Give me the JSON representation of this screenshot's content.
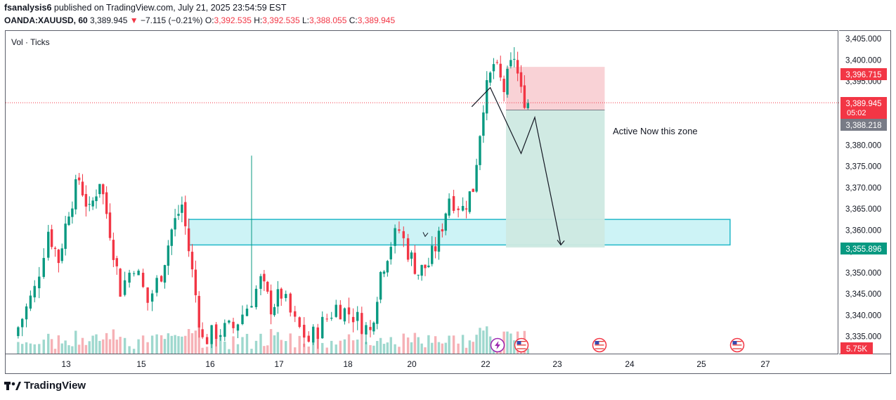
{
  "header": {
    "author": "fsanalysis6",
    "published_text": "published on TradingView.com, July 21, 2025 23:54:59 EST",
    "symbol": "OANDA:XAUUSD, 60",
    "last": "3,389.945",
    "change_arrow": "▼",
    "change": "−7.115 (−0.21%)",
    "o_label": "O:",
    "o_value": "3,392.535",
    "h_label": "H:",
    "h_value": "3,392.535",
    "l_label": "L:",
    "l_value": "3,388.055",
    "c_label": "C:",
    "c_value": "3,389.945"
  },
  "volume_label": "Vol · Ticks",
  "annotation_text": "Active Now this zone",
  "price_tags": {
    "stop": "3,396.715",
    "current": "3,389.945",
    "countdown": "05:02",
    "entry": "3,388.218",
    "target": "3,355.896",
    "volume": "5.75K"
  },
  "footer_brand": "TradingView",
  "colors": {
    "up": "#089981",
    "down": "#f23645",
    "zone_fill": "#c4f1f5",
    "zone_border": "#22b8c8",
    "stop_fill": "#f9d2d6",
    "target_fill": "#cde9e2",
    "tag_red": "#f23645",
    "tag_gray": "#787b86",
    "tag_green": "#089981"
  },
  "events": [
    {
      "icon": "lightning-icon"
    },
    {
      "icon": "us-flag-icon"
    },
    {
      "icon": "us-flag-icon"
    },
    {
      "icon": "us-flag-icon"
    }
  ],
  "chart_data": {
    "type": "candlestick",
    "symbol": "XAUUSD",
    "interval": "60",
    "y_ticks": [
      "3,405.000",
      "3,400.000",
      "3,395.000",
      "3,390.000",
      "3,385.000",
      "3,380.000",
      "3,375.000",
      "3,370.000",
      "3,365.000",
      "3,360.000",
      "3,355.000",
      "3,350.000",
      "3,345.000",
      "3,340.000",
      "3,335.000"
    ],
    "ylim": [
      3333.5,
      3407.5
    ],
    "x_ticks": [
      "13",
      "15",
      "16",
      "17",
      "18",
      "20",
      "22",
      "23",
      "24",
      "25",
      "27"
    ],
    "x_tick_times": [
      1,
      2,
      3,
      4,
      5,
      6,
      7,
      8,
      9,
      10,
      11
    ],
    "xlim": [
      0.0,
      11.2
    ],
    "series_anchors": [
      [
        0.0,
        3335
      ],
      [
        0.3,
        3346
      ],
      [
        0.5,
        3360
      ],
      [
        0.65,
        3353
      ],
      [
        0.8,
        3365
      ],
      [
        0.95,
        3372
      ],
      [
        1.1,
        3364
      ],
      [
        1.25,
        3372
      ],
      [
        1.4,
        3360
      ],
      [
        1.55,
        3346
      ],
      [
        1.75,
        3352
      ],
      [
        1.95,
        3343
      ],
      [
        2.15,
        3350
      ],
      [
        2.3,
        3360
      ],
      [
        2.45,
        3366
      ],
      [
        2.6,
        3350
      ],
      [
        2.75,
        3334
      ],
      [
        2.95,
        3336
      ],
      [
        3.2,
        3337
      ],
      [
        3.4,
        3342
      ],
      [
        3.6,
        3348
      ],
      [
        3.75,
        3342
      ],
      [
        3.9,
        3345
      ],
      [
        4.1,
        3338
      ],
      [
        4.3,
        3334
      ],
      [
        4.5,
        3338
      ],
      [
        4.7,
        3342
      ],
      [
        4.95,
        3340
      ],
      [
        5.2,
        3336
      ],
      [
        5.35,
        3350
      ],
      [
        5.5,
        3357
      ],
      [
        5.62,
        3360
      ],
      [
        5.75,
        3355
      ],
      [
        5.9,
        3350
      ],
      [
        6.05,
        3352
      ],
      [
        6.2,
        3358
      ],
      [
        6.35,
        3368
      ],
      [
        6.55,
        3365
      ],
      [
        6.7,
        3370
      ],
      [
        6.85,
        3390
      ],
      [
        7.0,
        3399
      ],
      [
        7.15,
        3393
      ],
      [
        7.3,
        3401
      ],
      [
        7.4,
        3392
      ],
      [
        7.5,
        3390
      ]
    ],
    "highlight_zone": {
      "x0": 2.55,
      "x1": 10.45,
      "top": 3362.5,
      "bottom": 3356.5
    },
    "short_position": {
      "x0": 7.18,
      "x1": 8.62,
      "stop": 3396.715,
      "entry": 3388.218,
      "target": 3355.896
    },
    "projection_path": [
      [
        6.68,
        3389
      ],
      [
        6.95,
        3393.5
      ],
      [
        7.4,
        3378
      ],
      [
        7.6,
        3386.5
      ],
      [
        7.98,
        3356.5
      ]
    ],
    "current_price": 3389.945,
    "volume_tag": "5.75K"
  }
}
